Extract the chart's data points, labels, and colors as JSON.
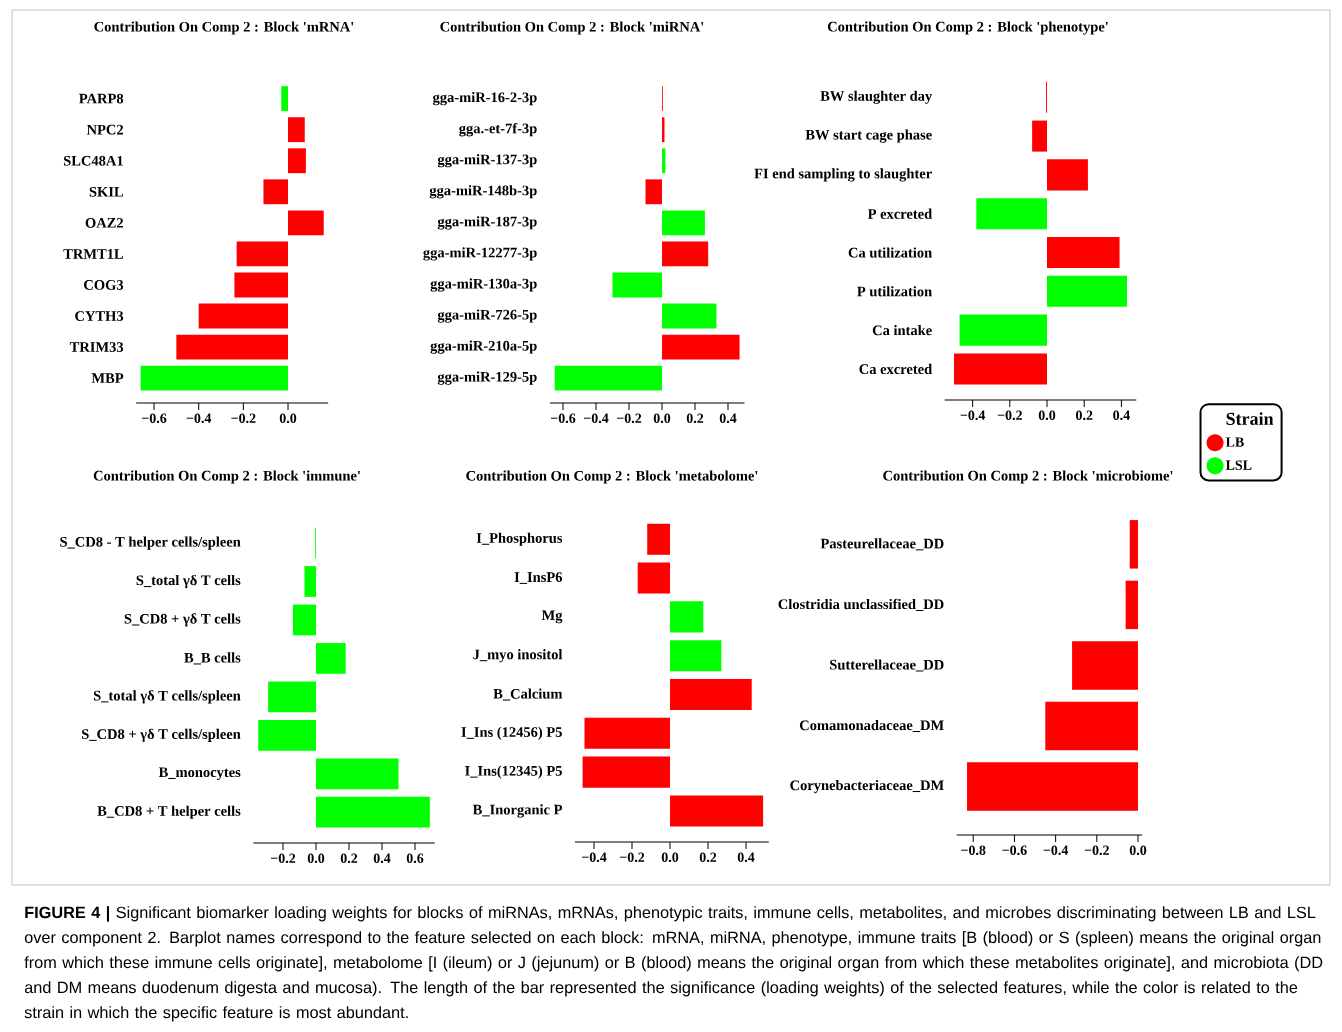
{
  "chart_data": [
    {
      "type": "bar",
      "orientation": "horizontal",
      "title": "Contribution On Comp 2 : Block 'mRNA'",
      "categories": [
        "PARP8",
        "NPC2",
        "SLC48A1",
        "SKIL",
        "OAZ2",
        "TRMT1L",
        "COG3",
        "CYTH3",
        "TRIM33",
        "MBP"
      ],
      "values": [
        -0.03,
        0.075,
        0.08,
        -0.11,
        0.16,
        -0.23,
        -0.24,
        -0.4,
        -0.5,
        -0.66
      ],
      "colors": [
        "#00ff00",
        "#ff0000",
        "#ff0000",
        "#ff0000",
        "#ff0000",
        "#ff0000",
        "#ff0000",
        "#ff0000",
        "#ff0000",
        "#00ff00"
      ],
      "xlim": [
        -0.68,
        0.18
      ],
      "xticks": [
        {
          "value": -0.6,
          "label": "−0.6"
        },
        {
          "value": -0.4,
          "label": "−0.4"
        },
        {
          "value": -0.2,
          "label": "−0.2"
        },
        {
          "value": 0,
          "label": "0.0"
        }
      ]
    },
    {
      "type": "bar",
      "orientation": "horizontal",
      "title": "Contribution On Comp 2 : Block 'miRNA'",
      "categories": [
        "gga-miR-16-2-3p",
        "gga.-et-7f-3p",
        "gga-miR-137-3p",
        "gga-miR-148b-3p",
        "gga-miR-187-3p",
        "gga-miR-12277-3p",
        "gga-miR-130a-3p",
        "gga-miR-726-5p",
        "gga-miR-210a-5p",
        "gga-miR-129-5p"
      ],
      "values": [
        0.005,
        0.015,
        0.02,
        -0.1,
        0.26,
        0.28,
        -0.3,
        0.33,
        0.47,
        -0.65
      ],
      "colors": [
        "#ff0000",
        "#ff0000",
        "#00ff00",
        "#ff0000",
        "#00ff00",
        "#ff0000",
        "#00ff00",
        "#00ff00",
        "#ff0000",
        "#00ff00"
      ],
      "xlim": [
        -0.68,
        0.5
      ],
      "xticks": [
        {
          "value": -0.6,
          "label": "−0.6"
        },
        {
          "value": -0.4,
          "label": "−0.4"
        },
        {
          "value": -0.2,
          "label": "−0.2"
        },
        {
          "value": 0,
          "label": "0.0"
        },
        {
          "value": 0.2,
          "label": "0.2"
        },
        {
          "value": 0.4,
          "label": "0.4"
        }
      ]
    },
    {
      "type": "bar",
      "orientation": "horizontal",
      "title": "Contribution On Comp 2 : Block 'phenotype'",
      "categories": [
        "BW slaughter day",
        "BW start cage phase",
        "FI end sampling to slaughter",
        "P excreted",
        "Ca utilization",
        "P utilization",
        "Ca intake",
        "Ca excreted"
      ],
      "series": [
        {
          "name": "LB",
          "color": "#ff0000",
          "values": [
            -0.005,
            -0.08,
            0.22,
            null,
            0.39,
            null,
            null,
            -0.5
          ]
        },
        {
          "name": "LSL",
          "color": "#00ff00",
          "values": [
            null,
            null,
            null,
            -0.38,
            null,
            0.43,
            -0.47,
            null
          ]
        }
      ],
      "legend": "right",
      "legend_title": "Strain",
      "xlim": [
        -0.55,
        0.48
      ],
      "xticks": [
        {
          "value": -0.4,
          "label": "−0.4"
        },
        {
          "value": -0.2,
          "label": "−0.2"
        },
        {
          "value": 0,
          "label": "0.0"
        },
        {
          "value": 0.2,
          "label": "0.2"
        },
        {
          "value": 0.4,
          "label": "0.4"
        }
      ]
    },
    {
      "type": "bar",
      "orientation": "horizontal",
      "title": "Contribution On Comp 2 : Block 'immune'",
      "categories": [
        "S_CD8 - T helper cells/spleen",
        "S_total γδ T cells",
        "S_CD8 + γδ T cells",
        "B_B cells",
        "S_total γδ T cells/spleen",
        "S_CD8 + γδ T cells/spleen",
        "B_monocytes",
        "B_CD8 + T helper cells"
      ],
      "values": [
        -0.005,
        -0.07,
        -0.14,
        0.18,
        -0.29,
        -0.35,
        0.5,
        0.69
      ],
      "colors": [
        "#00ff00",
        "#00ff00",
        "#00ff00",
        "#00ff00",
        "#00ff00",
        "#00ff00",
        "#00ff00",
        "#00ff00"
      ],
      "xlim": [
        -0.38,
        0.72
      ],
      "xticks": [
        {
          "value": -0.2,
          "label": "−0.2"
        },
        {
          "value": 0,
          "label": "0.0"
        },
        {
          "value": 0.2,
          "label": "0.2"
        },
        {
          "value": 0.4,
          "label": "0.4"
        },
        {
          "value": 0.6,
          "label": "0.6"
        }
      ]
    },
    {
      "type": "bar",
      "orientation": "horizontal",
      "title": "Contribution On Comp 2 : Block 'metabolome'",
      "categories": [
        "I_Phosphorus",
        "I_InsP6",
        "Mg",
        "J_myo inositol",
        "B_Calcium",
        "I_Ins (12456) P5",
        "I_Ins(12345) P5",
        "B_Inorganic P"
      ],
      "values": [
        -0.12,
        -0.17,
        0.175,
        0.27,
        0.43,
        -0.45,
        -0.46,
        0.49
      ],
      "colors": [
        "#ff0000",
        "#ff0000",
        "#00ff00",
        "#00ff00",
        "#ff0000",
        "#ff0000",
        "#ff0000",
        "#ff0000"
      ],
      "xlim": [
        -0.5,
        0.52
      ],
      "xticks": [
        {
          "value": -0.4,
          "label": "−0.4"
        },
        {
          "value": -0.2,
          "label": "−0.2"
        },
        {
          "value": 0,
          "label": "0.0"
        },
        {
          "value": 0.2,
          "label": "0.2"
        },
        {
          "value": 0.4,
          "label": "0.4"
        }
      ]
    },
    {
      "type": "bar",
      "orientation": "horizontal",
      "title": "Contribution On Comp 2 : Block 'microbiome'",
      "categories": [
        "Pasteurellaceae_DD",
        "Clostridia unclassified_DD",
        "Sutterellaceae_DD",
        "Comamonadaceae_DM",
        "Corynebacteriaceae_DM"
      ],
      "values": [
        -0.04,
        -0.06,
        -0.32,
        -0.45,
        -0.83
      ],
      "colors": [
        "#ff0000",
        "#ff0000",
        "#ff0000",
        "#ff0000",
        "#ff0000"
      ],
      "xlim": [
        -0.88,
        0.02
      ],
      "xticks": [
        {
          "value": -0.8,
          "label": "−0.8"
        },
        {
          "value": -0.6,
          "label": "−0.6"
        },
        {
          "value": -0.4,
          "label": "−0.4"
        },
        {
          "value": -0.2,
          "label": "−0.2"
        },
        {
          "value": 0,
          "label": "0.0"
        }
      ]
    },
    {
      "type": "other",
      "annotations": [
        "**FIGURE 4 |** Significant biomarker loading weights for blocks of miRNAs, mRNAs, phenotypic traits, immune cells, metabolites, and microbes discriminating between LB and LSL over component 2. Barplot names correspond to the feature selected on each block: mRNA, miRNA, phenotype, immune traits [B (blood) or S (spleen) means the original organ from which these immune cells originate], metabolome [I (ileum) or J (jejunum) or B (blood) means the original organ from which these metabolites originate], and microbiota (DD and DM means duodenum digesta and mucosa). The length of the bar represented the significance (loading weights) of the selected features, while the color is related to the strain in which the specific feature is most abundant."
      ]
    }
  ]
}
